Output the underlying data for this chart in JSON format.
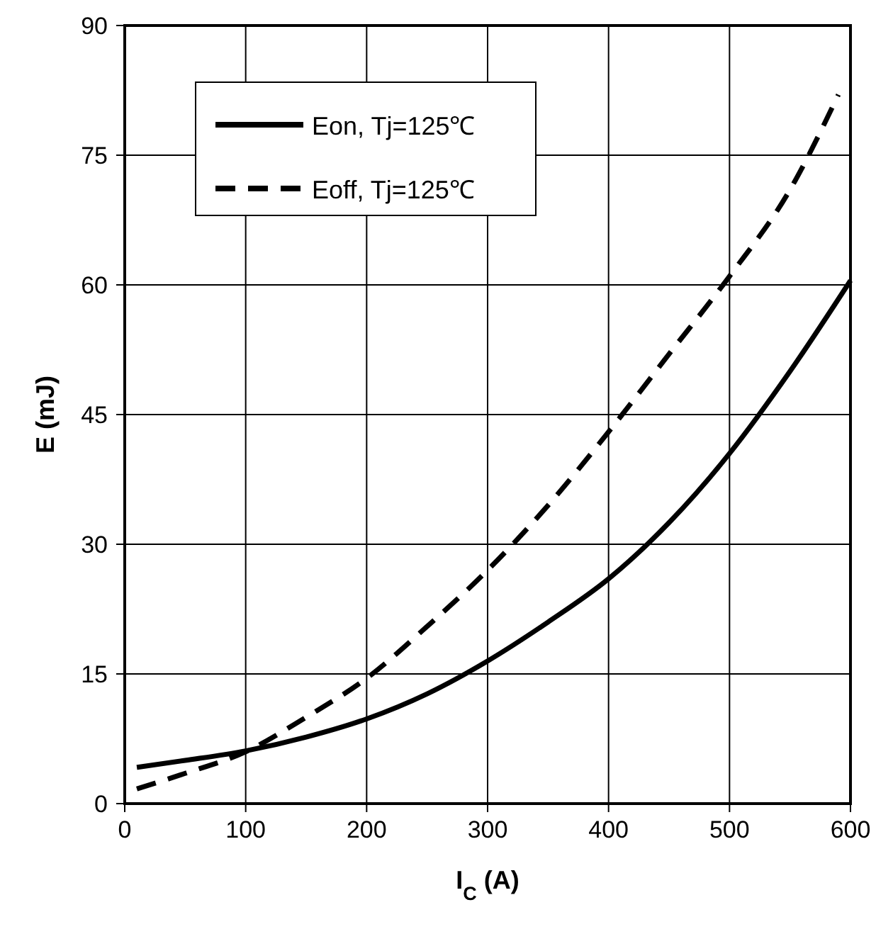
{
  "chart_data": {
    "type": "line",
    "xlabel": "I$_{C}$ (A)",
    "ylabel": "E (mJ)",
    "xlim": [
      0,
      600
    ],
    "ylim": [
      0,
      90
    ],
    "xticks": [
      0,
      100,
      200,
      300,
      400,
      500,
      600
    ],
    "yticks": [
      0,
      15,
      30,
      45,
      60,
      75,
      90
    ],
    "grid": true,
    "legend": "top left",
    "series": [
      {
        "name": "Eon, Tj=125℃",
        "color": "#000000",
        "line_style": "solid",
        "x": [
          10,
          50,
          100,
          150,
          200,
          250,
          300,
          350,
          400,
          450,
          500,
          550,
          600
        ],
        "values": [
          4.2,
          5,
          6.1,
          7.7,
          9.8,
          12.7,
          16.5,
          21,
          26,
          32.5,
          40.5,
          50,
          60.5
        ]
      },
      {
        "name": "Eoff, Tj=125℃",
        "color": "#000000",
        "line_style": "dashed",
        "x": [
          10,
          50,
          100,
          150,
          200,
          250,
          300,
          350,
          400,
          450,
          500,
          550,
          590
        ],
        "values": [
          1.7,
          3.5,
          6,
          10,
          14.5,
          20.5,
          27,
          34.5,
          43,
          52,
          61,
          71,
          82
        ]
      }
    ]
  }
}
